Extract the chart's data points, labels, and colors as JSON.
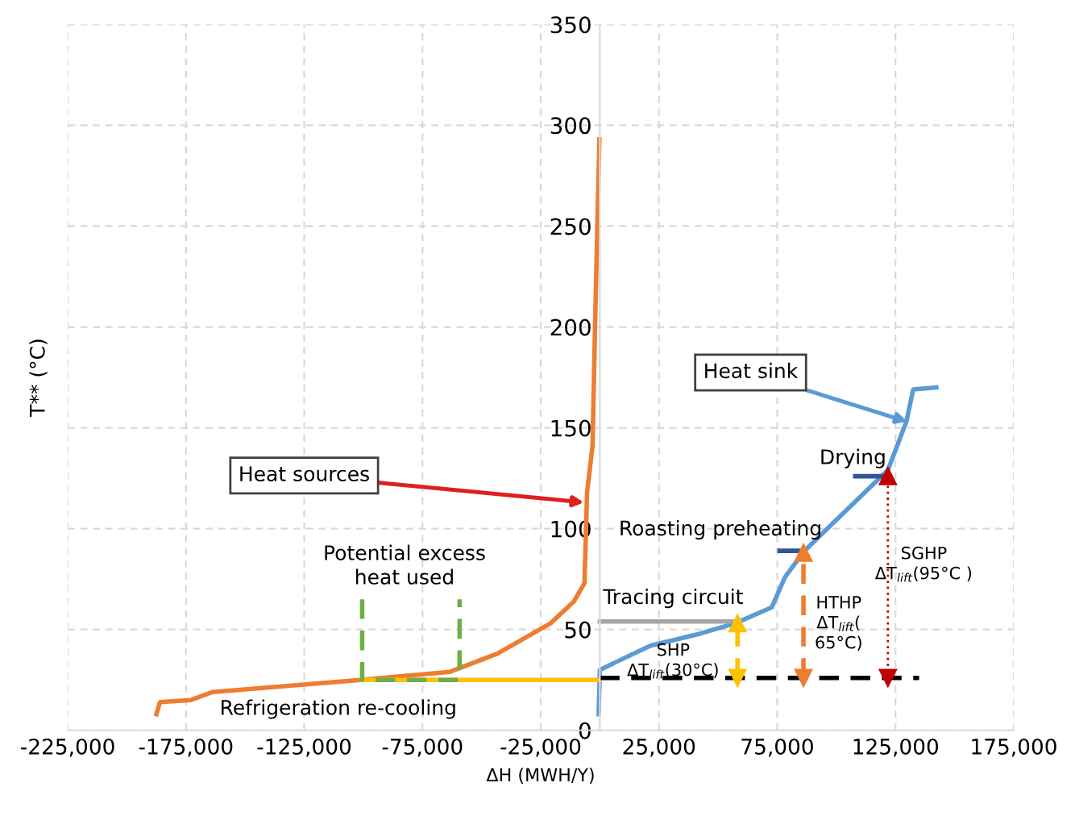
{
  "chart_data": {
    "type": "line",
    "xlabel": "ΔH (MWH/Y)",
    "ylabel": "T** (°C)",
    "xlim": [
      -225000,
      175000
    ],
    "ylim": [
      0,
      350
    ],
    "xticks": [
      {
        "value": -225000,
        "label": "-225,000"
      },
      {
        "value": -175000,
        "label": "-175,000"
      },
      {
        "value": -125000,
        "label": "-125,000"
      },
      {
        "value": -75000,
        "label": "-75,000"
      },
      {
        "value": -25000,
        "label": "-25,000"
      },
      {
        "value": 25000,
        "label": "25,000"
      },
      {
        "value": 75000,
        "label": "75,000"
      },
      {
        "value": 125000,
        "label": "125,000"
      },
      {
        "value": 175000,
        "label": "175,000"
      }
    ],
    "yticks": [
      0,
      50,
      100,
      150,
      200,
      250,
      300,
      350
    ],
    "grid": true,
    "series": [
      {
        "color": "#ed7d31",
        "x": [
          -187500,
          -186000,
          -173000,
          -163700,
          -101200,
          -63400,
          -43300,
          -20900,
          -10900,
          -6500,
          -5400,
          -3100,
          -2000,
          -200
        ],
        "values": [
          8,
          14,
          15,
          19,
          25,
          29,
          38,
          53,
          64,
          73,
          118,
          141,
          202,
          293
        ]
      },
      {
        "color": "#5b9bd5",
        "x": [
          -500,
          0,
          21400,
          42600,
          57100,
          72700,
          78300,
          86500,
          121800,
          129600,
          132500,
          142300
        ],
        "values": [
          8,
          30,
          42,
          48,
          53,
          61,
          76,
          89,
          129,
          153,
          169,
          170
        ]
      },
      {
        "color": "#a5a5a5",
        "x": [
          0,
          59300
        ],
        "values": [
          54,
          54
        ]
      },
      {
        "color": "#ffc000",
        "x": [
          -100500,
          0
        ],
        "values": [
          25,
          25
        ]
      },
      {
        "color": "#70ad47",
        "line_style": "dashed",
        "x": [
          -100500,
          -100500,
          -59300,
          -59300
        ],
        "values": [
          65,
          25,
          25,
          65
        ]
      },
      {
        "color": "#000000",
        "line_style": "dashed",
        "x": [
          0,
          135000
        ],
        "values": [
          26,
          26
        ]
      },
      {
        "color": "#2f5597",
        "x": [
          76000,
          86500
        ],
        "values": [
          89,
          89
        ]
      },
      {
        "color": "#2f5597",
        "x": [
          108000,
          121800
        ],
        "values": [
          126,
          126
        ]
      },
      {
        "color": "#ffc000",
        "line_style": "dashed",
        "marker": "triangle",
        "x": [
          58200,
          58200
        ],
        "values": [
          26,
          53
        ]
      },
      {
        "color": "#ed7d31",
        "line_style": "dashed",
        "marker": "triangle",
        "x": [
          86100,
          86100
        ],
        "values": [
          26,
          88
        ]
      },
      {
        "color": "#c00000",
        "line_style": "dotted",
        "marker": "triangle",
        "x": [
          121800,
          121800
        ],
        "values": [
          26,
          126
        ]
      }
    ],
    "annotations": [
      {
        "text": "Heat sources",
        "x": -6700,
        "y": 113
      },
      {
        "text": "Heat sink",
        "x": 130000,
        "y": 153
      },
      "Potential excess\nheat used",
      "Refrigeration re-cooling",
      "Tracing circuit",
      "Roasting preheating",
      "Drying",
      "SHP\nΔT$_{lift}$(30°C)",
      "HTHP\nΔT$_{lift}$(\n65°C)",
      "SGHP\nΔT$_{lift}$(95°C )"
    ]
  }
}
